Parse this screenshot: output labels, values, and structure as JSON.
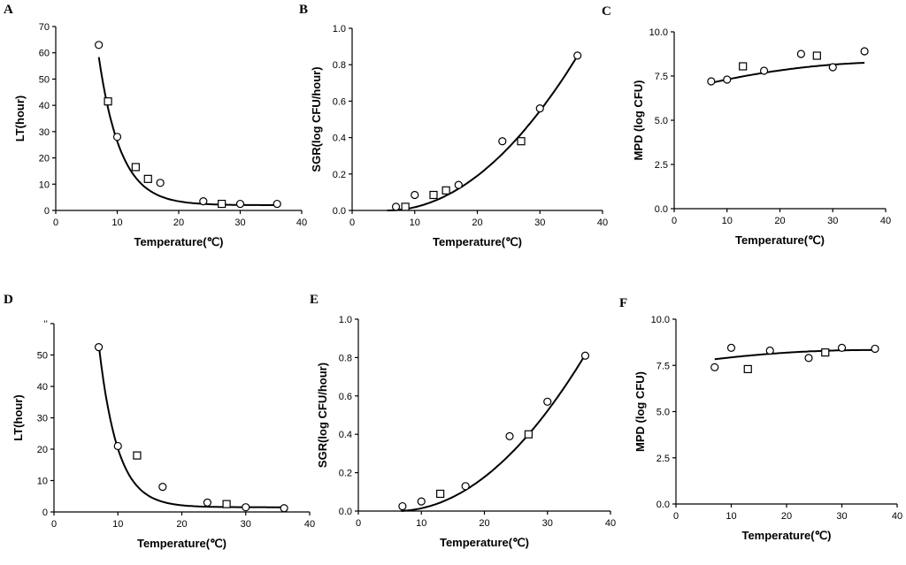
{
  "figure": {
    "title": "",
    "colors": {
      "ink": "#000000",
      "background": "#ffffff"
    }
  },
  "chart_data": [
    {
      "panel": "A",
      "type": "scatter",
      "xlabel": "Temperature(℃)",
      "ylabel": "LT(hour)",
      "xlim": [
        0,
        40
      ],
      "ylim": [
        0,
        70
      ],
      "xticks": [
        "0",
        "10",
        "20",
        "30",
        "40"
      ],
      "yticks": [
        "0",
        "10",
        "20",
        "30",
        "40",
        "50",
        "60",
        "70"
      ],
      "fit": {
        "model": "exponential-decay",
        "a": 400,
        "k": 0.28,
        "c": 2,
        "x_range": [
          7,
          36
        ]
      },
      "series": [
        {
          "name": "observed-circle",
          "marker": "circle",
          "points": [
            [
              7,
              63
            ],
            [
              10,
              28
            ],
            [
              17,
              10.5
            ],
            [
              24,
              3.5
            ],
            [
              30,
              2.5
            ],
            [
              36,
              2.5
            ]
          ]
        },
        {
          "name": "observed-square",
          "marker": "square",
          "points": [
            [
              8.5,
              41.5
            ],
            [
              13,
              16.5
            ],
            [
              15,
              12
            ],
            [
              27,
              2.5
            ]
          ]
        }
      ]
    },
    {
      "panel": "B",
      "type": "scatter",
      "xlabel": "Temperature(℃)",
      "ylabel": "SGR(log CFU/hour)",
      "xlim": [
        0,
        40
      ],
      "ylim": [
        0,
        1.0
      ],
      "xticks": [
        "0",
        "10",
        "20",
        "30",
        "40"
      ],
      "yticks": [
        "0.0",
        "0.2",
        "0.4",
        "0.6",
        "0.8",
        "1.0"
      ],
      "fit": {
        "model": "square-root",
        "b": 0.0303,
        "tmin": 5.6,
        "x_range": [
          5.6,
          36
        ]
      },
      "series": [
        {
          "name": "observed-circle",
          "marker": "circle",
          "points": [
            [
              7,
              0.02
            ],
            [
              10,
              0.085
            ],
            [
              17,
              0.14
            ],
            [
              24,
              0.38
            ],
            [
              30,
              0.56
            ],
            [
              36,
              0.85
            ]
          ]
        },
        {
          "name": "observed-square",
          "marker": "square",
          "points": [
            [
              8.5,
              0.02
            ],
            [
              13,
              0.085
            ],
            [
              15,
              0.11
            ],
            [
              27,
              0.38
            ]
          ]
        }
      ]
    },
    {
      "panel": "C",
      "type": "scatter",
      "xlabel": "Temperature(℃)",
      "ylabel": "MPD (log CFU)",
      "xlim": [
        0,
        40
      ],
      "ylim": [
        0,
        10
      ],
      "xticks": [
        "0",
        "10",
        "20",
        "30",
        "40"
      ],
      "yticks": [
        "0.0",
        "2.5",
        "5.0",
        "7.5",
        "10.0"
      ],
      "fit": {
        "model": "quadratic",
        "p": [
          6.6,
          0.08,
          -0.00095
        ],
        "x_range": [
          7,
          36
        ]
      },
      "series": [
        {
          "name": "observed-circle",
          "marker": "circle",
          "points": [
            [
              7,
              7.2
            ],
            [
              10,
              7.3
            ],
            [
              17,
              7.8
            ],
            [
              24,
              8.75
            ],
            [
              30,
              8.0
            ],
            [
              36,
              8.9
            ]
          ]
        },
        {
          "name": "observed-square",
          "marker": "square",
          "points": [
            [
              13,
              8.05
            ],
            [
              27,
              8.65
            ]
          ]
        }
      ]
    },
    {
      "panel": "D",
      "type": "scatter",
      "xlabel": "Temperature(℃)",
      "ylabel": "LT(hour)",
      "xlim": [
        0,
        40
      ],
      "ylim": [
        0,
        60
      ],
      "xticks": [
        "0",
        "10",
        "20",
        "30",
        "40"
      ],
      "yticks": [
        "0",
        "10",
        "20",
        "30",
        "40",
        "50",
        "’’"
      ],
      "fit": {
        "model": "exponential-decay",
        "a": 560,
        "k": 0.34,
        "c": 1.5,
        "x_range": [
          7,
          36
        ]
      },
      "series": [
        {
          "name": "observed-circle",
          "marker": "circle",
          "points": [
            [
              7,
              52.5
            ],
            [
              10,
              21
            ],
            [
              17,
              8
            ],
            [
              24,
              3
            ],
            [
              30,
              1.5
            ],
            [
              36,
              1.2
            ]
          ]
        },
        {
          "name": "observed-square",
          "marker": "square",
          "points": [
            [
              13,
              18
            ],
            [
              27,
              2.5
            ]
          ]
        }
      ]
    },
    {
      "panel": "E",
      "type": "scatter",
      "xlabel": "Temperature(℃)",
      "ylabel": "SGR(log CFU/hour)",
      "xlim": [
        0,
        40
      ],
      "ylim": [
        0,
        1.0
      ],
      "xticks": [
        "0",
        "10",
        "20",
        "30",
        "40"
      ],
      "yticks": [
        "0.0",
        "0.2",
        "0.4",
        "0.6",
        "0.8",
        "1.0"
      ],
      "fit": {
        "model": "square-root",
        "b": 0.0301,
        "tmin": 6.0,
        "x_range": [
          6.8,
          36
        ]
      },
      "series": [
        {
          "name": "observed-circle",
          "marker": "circle",
          "points": [
            [
              7,
              0.025
            ],
            [
              10,
              0.05
            ],
            [
              17,
              0.13
            ],
            [
              24,
              0.39
            ],
            [
              30,
              0.57
            ],
            [
              36,
              0.81
            ]
          ]
        },
        {
          "name": "observed-square",
          "marker": "square",
          "points": [
            [
              13,
              0.09
            ],
            [
              27,
              0.4
            ]
          ]
        }
      ]
    },
    {
      "panel": "F",
      "type": "scatter",
      "xlabel": "Temperature(℃)",
      "ylabel": "MPD (log CFU)",
      "xlim": [
        0,
        40
      ],
      "ylim": [
        0,
        10
      ],
      "xticks": [
        "0",
        "10",
        "20",
        "30",
        "40"
      ],
      "yticks": [
        "0.0",
        "2.5",
        "5.0",
        "7.5",
        "10.0"
      ],
      "fit": {
        "model": "quadratic",
        "p": [
          7.55,
          0.045,
          -0.00065
        ],
        "x_range": [
          7,
          36
        ]
      },
      "series": [
        {
          "name": "observed-circle",
          "marker": "circle",
          "points": [
            [
              7,
              7.4
            ],
            [
              10,
              8.45
            ],
            [
              17,
              8.3
            ],
            [
              24,
              7.9
            ],
            [
              30,
              8.45
            ],
            [
              36,
              8.4
            ]
          ]
        },
        {
          "name": "observed-square",
          "marker": "square",
          "points": [
            [
              13,
              7.3
            ],
            [
              27,
              8.2
            ]
          ]
        }
      ]
    }
  ]
}
